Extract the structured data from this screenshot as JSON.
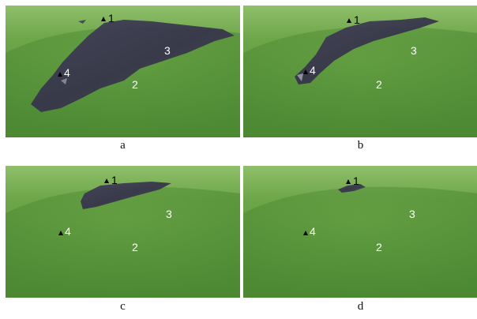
{
  "panels": [
    {
      "id": "a",
      "caption": "a",
      "markers": {
        "m1": "1",
        "m2": "2",
        "m3": "3",
        "m4": "4"
      }
    },
    {
      "id": "b",
      "caption": "b",
      "markers": {
        "m1": "1",
        "m2": "2",
        "m3": "3",
        "m4": "4"
      }
    },
    {
      "id": "c",
      "caption": "c",
      "markers": {
        "m1": "1",
        "m2": "2",
        "m3": "3",
        "m4": "4"
      }
    },
    {
      "id": "d",
      "caption": "d",
      "markers": {
        "m1": "1",
        "m2": "2",
        "m3": "3",
        "m4": "4"
      }
    }
  ],
  "colors": {
    "terrain": "#4f8f35",
    "terrain_light": "#8fc06a",
    "overlay": "#3a3650"
  }
}
